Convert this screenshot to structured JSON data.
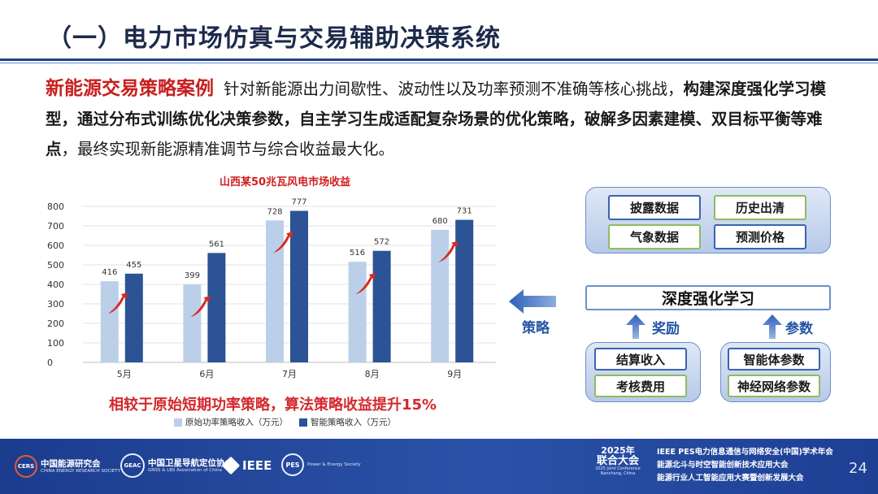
{
  "header": {
    "title": "（一）电力市场仿真与交易辅助决策系统"
  },
  "intro": {
    "lead": "新能源交易策略案例",
    "text1": "针对新能源出力间歇性、波动性以及功率预测不准确等核心挑战，",
    "bold1": "构建深度强化学习模型，通过分布式训练优化决策参数，自主学习生成适配复杂场景的优化策略，破解多因素建模、双目标平衡等难点",
    "text2": "，最终实现新能源精准调节与综合收益最大化。"
  },
  "chart_data": {
    "type": "bar",
    "title": "山西某50兆瓦风电市场收益",
    "categories": [
      "5月",
      "6月",
      "7月",
      "8月",
      "9月"
    ],
    "series": [
      {
        "name": "原始功率策略收入（万元）",
        "values": [
          416,
          399,
          728,
          516,
          680
        ],
        "color": "#bccfe9"
      },
      {
        "name": "智能策略收入（万元）",
        "values": [
          455,
          561,
          777,
          572,
          731
        ],
        "color": "#2b5395"
      }
    ],
    "ylim": [
      0,
      800
    ],
    "yticks": [
      0,
      100,
      200,
      300,
      400,
      500,
      600,
      700,
      800
    ],
    "grid": true,
    "legend": "bottom",
    "callout": "相较于原始短期功率策略，算法策略收益提升15%"
  },
  "diagram": {
    "strategy_label": "策略",
    "top_inputs": [
      "披露数据",
      "历史出清",
      "气象数据",
      "预测价格"
    ],
    "core": "深度强化学习",
    "reward_label": "奖励",
    "param_label": "参数",
    "reward_inputs": [
      "结算收入",
      "考核费用"
    ],
    "param_inputs": [
      "智能体参数",
      "神经网络参数"
    ],
    "colors": {
      "blue_border": "#3a64b0",
      "green_border": "#8fbc5f",
      "label_blue": "#2355a5"
    }
  },
  "footer": {
    "logos": [
      {
        "mark": "CERS",
        "main": "中国能源研究会",
        "sub": "CHINA ENERGY RESEARCH SOCIETY"
      },
      {
        "mark": "GEAC",
        "main": "中国卫星导航定位协会",
        "sub": "GNSS & LBS Association of China"
      },
      {
        "mark": "IEEE",
        "main": "IEEE",
        "sub": ""
      },
      {
        "mark": "PES",
        "main": "",
        "sub": "Power & Energy Society"
      }
    ],
    "conference": {
      "year": "2025年",
      "name": "联合大会",
      "sub": "2025 Joint Conference Nanchang, China"
    },
    "lines": [
      "IEEE PES电力信息通信与网络安全(中国)学术年会",
      "能源北斗与时空智能创新技术应用大会",
      "能源行业人工智能应用大赛暨创新发展大会"
    ],
    "page_number": "24"
  }
}
